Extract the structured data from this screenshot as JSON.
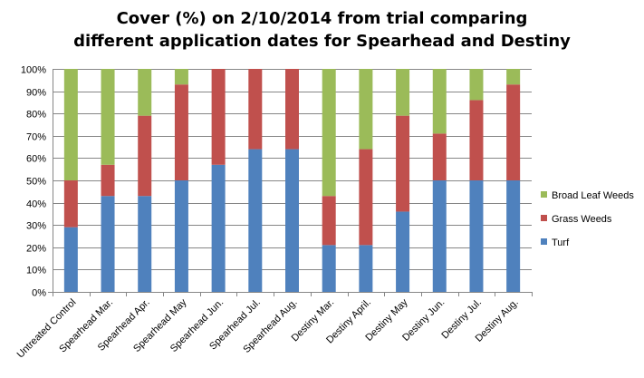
{
  "chart_data": {
    "type": "bar",
    "stacked": true,
    "title_lines": [
      "Cover (%) on 2/10/2014 from trial comparing",
      "different application  dates for Spearhead and Destiny"
    ],
    "categories": [
      "Untreated Control",
      "Spearhead Mar.",
      "Spearhead Apr.",
      "Spearhead May",
      "Spearhead Jun.",
      "Spearhead Jul.",
      "Spearhead Aug.",
      "Destiny Mar.",
      "Destiny April.",
      "Destiny May",
      "Destiny Jun.",
      "Destiny Jul.",
      "Destiny Aug."
    ],
    "series": [
      {
        "name": "Turf",
        "color": "#4F81BD",
        "values": [
          29,
          43,
          43,
          50,
          57,
          64,
          64,
          21,
          21,
          36,
          50,
          50,
          50
        ]
      },
      {
        "name": "Grass Weeds",
        "color": "#C0504D",
        "values": [
          21,
          14,
          36,
          43,
          43,
          36,
          36,
          22,
          43,
          43,
          21,
          36,
          43
        ]
      },
      {
        "name": "Broad Leaf Weeds",
        "color": "#9BBB59",
        "values": [
          50,
          43,
          21,
          7,
          0,
          0,
          0,
          57,
          36,
          21,
          29,
          14,
          7
        ]
      }
    ],
    "y_ticks": [
      "0%",
      "10%",
      "20%",
      "30%",
      "40%",
      "50%",
      "60%",
      "70%",
      "80%",
      "90%",
      "100%"
    ],
    "ylim": [
      0,
      100
    ],
    "legend_order": [
      "Broad Leaf Weeds",
      "Grass Weeds",
      "Turf"
    ],
    "legend_position": "right",
    "grid": true
  }
}
